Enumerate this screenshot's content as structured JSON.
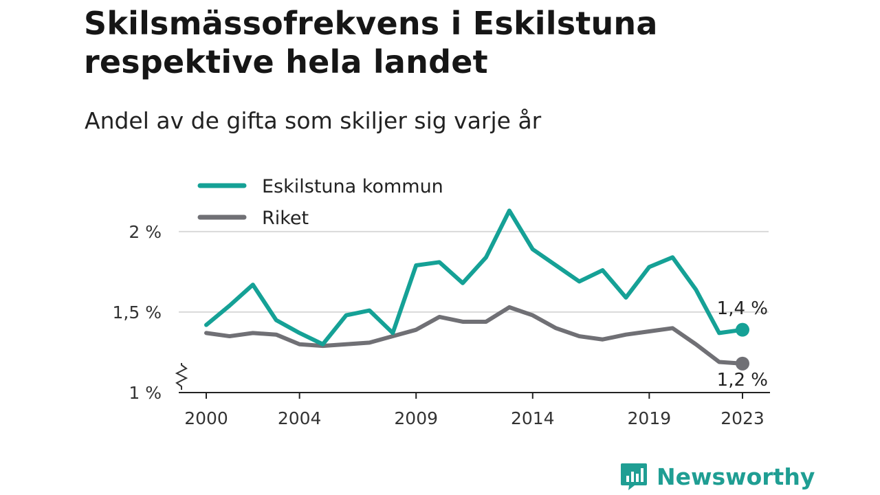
{
  "title": "Skilsmässofrekvens i Eskilstuna respektive hela landet",
  "subtitle": "Andel av de gifta som skiljer sig varje år",
  "brand": {
    "name": "Newsworthy",
    "icon": "newsworthy-logo-icon"
  },
  "colors": {
    "eskilstuna": "#15a196",
    "riket": "#707075",
    "grid": "#d9d9d9",
    "brand": "#1f9e93"
  },
  "chart_data": {
    "type": "line",
    "x": [
      2000,
      2001,
      2002,
      2003,
      2004,
      2005,
      2006,
      2007,
      2008,
      2009,
      2010,
      2011,
      2012,
      2013,
      2014,
      2015,
      2016,
      2017,
      2018,
      2019,
      2020,
      2021,
      2022,
      2023
    ],
    "series": [
      {
        "name": "Eskilstuna kommun",
        "color": "#15a196",
        "values": [
          1.42,
          1.54,
          1.67,
          1.45,
          1.37,
          1.3,
          1.48,
          1.51,
          1.37,
          1.79,
          1.81,
          1.68,
          1.84,
          2.13,
          1.89,
          1.79,
          1.69,
          1.76,
          1.59,
          1.78,
          1.84,
          1.64,
          1.37,
          1.39
        ],
        "end_label": "1,4 %"
      },
      {
        "name": "Riket",
        "color": "#707075",
        "values": [
          1.37,
          1.35,
          1.37,
          1.36,
          1.3,
          1.29,
          1.3,
          1.31,
          1.35,
          1.39,
          1.47,
          1.44,
          1.44,
          1.53,
          1.48,
          1.4,
          1.35,
          1.33,
          1.36,
          1.38,
          1.4,
          1.3,
          1.19,
          1.18
        ],
        "end_label": "1,2 %"
      }
    ],
    "y_ticks": [
      1.0,
      1.5,
      2.0
    ],
    "y_tick_labels": [
      "1 %",
      "1,5 %",
      "2 %"
    ],
    "x_ticks": [
      2000,
      2004,
      2009,
      2014,
      2019,
      2023
    ],
    "x_tick_labels": [
      "2000",
      "2004",
      "2009",
      "2014",
      "2019",
      "2023"
    ],
    "ylim": [
      1.0,
      2.2
    ],
    "xlim": [
      2000,
      2023
    ],
    "grid": "horizontal",
    "axis_break": true,
    "legend_position": "top-left"
  }
}
